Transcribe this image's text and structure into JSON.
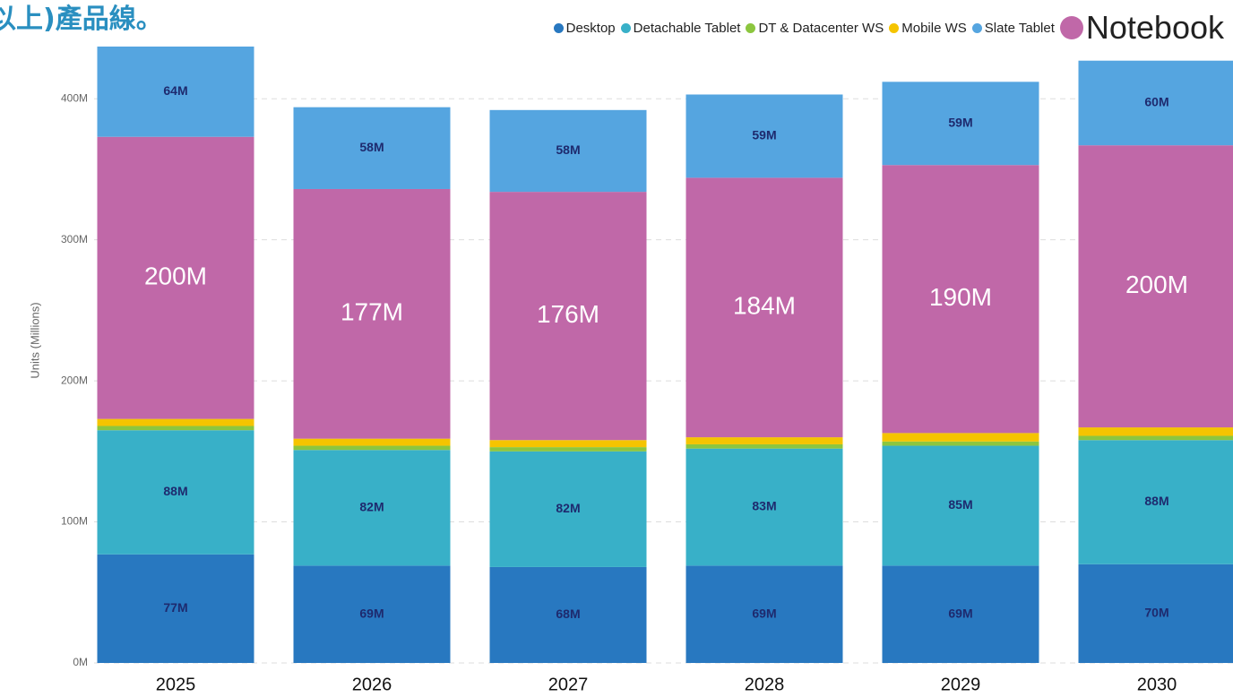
{
  "chart_data": {
    "type": "stacked_bar",
    "title": "以上)產品線。",
    "ylabel": "Units (Millions)",
    "categories": [
      "2025",
      "2026",
      "2027",
      "2028",
      "2029",
      "2030"
    ],
    "series": [
      {
        "name": "Desktop",
        "color": "#2878c0",
        "values": [
          77,
          69,
          68,
          69,
          69,
          70
        ],
        "value_labels": [
          "77M",
          "69M",
          "68M",
          "69M",
          "69M",
          "70M"
        ]
      },
      {
        "name": "Detachable Tablet",
        "color": "#38b0c8",
        "values": [
          88,
          82,
          82,
          83,
          85,
          88
        ],
        "value_labels": [
          "88M",
          "82M",
          "82M",
          "83M",
          "85M",
          "88M"
        ]
      },
      {
        "name": "DT & Datacenter WS",
        "color": "#8cc63f",
        "values": [
          3,
          3,
          3,
          3,
          3,
          3
        ]
      },
      {
        "name": "Mobile WS",
        "color": "#f5c400",
        "values": [
          5,
          5,
          5,
          5,
          6,
          6
        ]
      },
      {
        "name": "Notebook",
        "color": "#c068a8",
        "values": [
          200,
          177,
          176,
          184,
          190,
          200
        ],
        "value_labels": [
          "200M",
          "177M",
          "176M",
          "184M",
          "190M",
          "200M"
        ]
      },
      {
        "name": "Slate Tablet",
        "color": "#55a5e0",
        "values": [
          64,
          58,
          58,
          59,
          59,
          60
        ],
        "value_labels": [
          "64M",
          "58M",
          "58M",
          "59M",
          "59M",
          "60M"
        ]
      }
    ],
    "legend_order": [
      0,
      1,
      2,
      3,
      5,
      4
    ],
    "ylim": [
      0,
      470
    ],
    "yticks": [
      {
        "value": 0,
        "label": "0M"
      },
      {
        "value": 100,
        "label": "100M"
      },
      {
        "value": 200,
        "label": "200M"
      },
      {
        "value": 300,
        "label": "300M"
      },
      {
        "value": 400,
        "label": "400M"
      }
    ],
    "grid": true
  }
}
